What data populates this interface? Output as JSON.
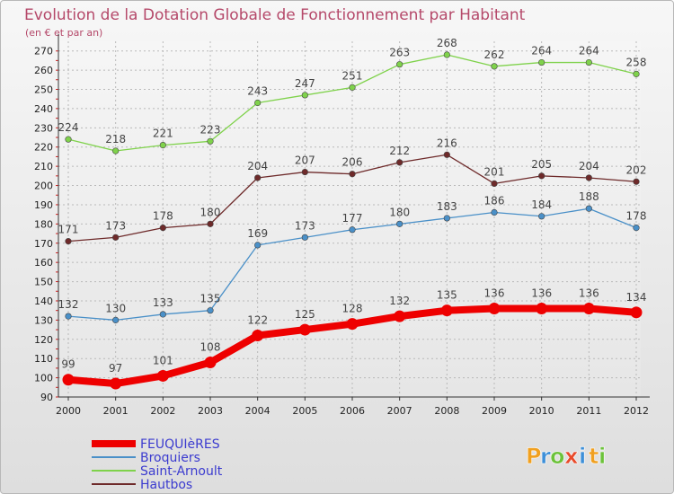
{
  "chart_data": {
    "type": "line",
    "title": "Evolution de la Dotation Globale de Fonctionnement par Habitant",
    "subtitle": "(en € et par an)",
    "x": [
      "2000",
      "2001",
      "2002",
      "2003",
      "2004",
      "2005",
      "2006",
      "2007",
      "2008",
      "2009",
      "2010",
      "2011",
      "2012"
    ],
    "ylim": [
      90,
      275
    ],
    "yticks": [
      90,
      100,
      110,
      120,
      130,
      140,
      150,
      160,
      170,
      180,
      190,
      200,
      210,
      220,
      230,
      240,
      250,
      260,
      270
    ],
    "grid": true,
    "series": [
      {
        "name": "Saint-Arnoult",
        "color": "#7fd24b",
        "values": [
          224,
          218,
          221,
          223,
          243,
          247,
          251,
          263,
          268,
          262,
          264,
          264,
          258
        ]
      },
      {
        "name": "Hautbos",
        "color": "#6e2a2a",
        "values": [
          171,
          173,
          178,
          180,
          204,
          207,
          206,
          212,
          216,
          201,
          205,
          204,
          202
        ]
      },
      {
        "name": "Broquiers",
        "color": "#4a90c8",
        "values": [
          132,
          130,
          133,
          135,
          169,
          173,
          177,
          180,
          183,
          186,
          184,
          188,
          178
        ]
      },
      {
        "name": "FEUQUIèRES",
        "color": "#ee0000",
        "values": [
          99,
          97,
          101,
          108,
          122,
          125,
          128,
          132,
          135,
          136,
          136,
          136,
          134
        ]
      }
    ],
    "legend": [
      "FEUQUIèRES",
      "Broquiers",
      "Saint-Arnoult",
      "Hautbos"
    ],
    "legend_position": "bottom-left"
  },
  "logo": {
    "letters": [
      "P",
      "r",
      "o",
      "x",
      "i",
      "t",
      "i"
    ],
    "colors": [
      "#f0a020",
      "#3d8fd8",
      "#6cc23a",
      "#e84a2a",
      "#3d8fd8",
      "#f0a020",
      "#6cc23a"
    ]
  }
}
